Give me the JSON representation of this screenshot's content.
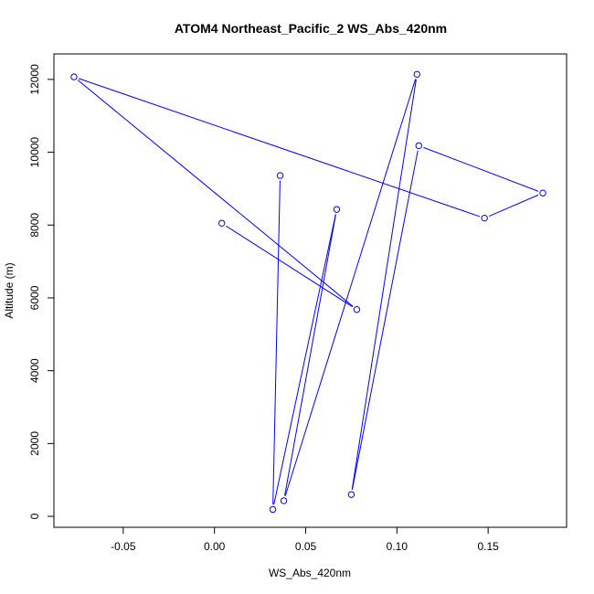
{
  "chart_data": {
    "type": "line",
    "title": "ATOM4 Northeast_Pacific_2 WS_Abs_420nm",
    "xlabel": "WS_Abs_420nm",
    "ylabel": "Altitude (m)",
    "xlim": [
      -0.088,
      0.193
    ],
    "ylim": [
      -300,
      12700
    ],
    "xticks": [
      -0.05,
      0.0,
      0.05,
      0.1,
      0.15
    ],
    "xtick_labels": [
      "-0.05",
      "0.00",
      "0.05",
      "0.10",
      "0.15"
    ],
    "yticks": [
      0,
      2000,
      4000,
      6000,
      8000,
      10000,
      12000
    ],
    "ytick_labels": [
      "0",
      "2000",
      "4000",
      "6000",
      "8000",
      "10000",
      "12000"
    ],
    "grid": false,
    "line_color": "#0000ff",
    "marker": "open-circle",
    "series": [
      {
        "points": [
          {
            "x": 0.004,
            "y": 8050
          },
          {
            "x": 0.078,
            "y": 5680
          },
          {
            "x": -0.077,
            "y": 12070
          },
          {
            "x": 0.148,
            "y": 8190
          },
          {
            "x": 0.18,
            "y": 8880
          },
          {
            "x": 0.112,
            "y": 10180
          },
          {
            "x": 0.075,
            "y": 600
          },
          {
            "x": 0.111,
            "y": 12140
          },
          {
            "x": 0.038,
            "y": 430
          },
          {
            "x": 0.067,
            "y": 8430
          },
          {
            "x": 0.032,
            "y": 190
          },
          {
            "x": 0.036,
            "y": 9360
          }
        ]
      }
    ]
  }
}
